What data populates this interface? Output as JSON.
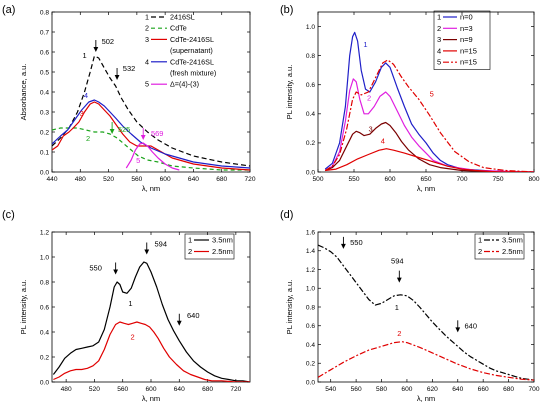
{
  "figure": {
    "panels": [
      {
        "letter": "(a)"
      },
      {
        "letter": "(b)"
      },
      {
        "letter": "(c)"
      },
      {
        "letter": "(d)"
      }
    ]
  },
  "chart_data": [
    {
      "panel": "(a)",
      "type": "line",
      "xlabel": "λ, nm",
      "ylabel": "Absorbance, a.u.",
      "xlim": [
        440,
        720
      ],
      "ylim": [
        0,
        0.8
      ],
      "xticks": [
        440,
        480,
        520,
        560,
        600,
        640,
        680,
        720
      ],
      "yticks": [
        0.0,
        0.1,
        0.2,
        0.3,
        0.4,
        0.5,
        0.6,
        0.7,
        0.8
      ],
      "grid": false,
      "legend_position": "top-right",
      "series": [
        {
          "id": "1",
          "name": "2416SL",
          "color": "#000000",
          "dash": "5,3",
          "curve_label": "1",
          "x": [
            440,
            452,
            464,
            476,
            486,
            494,
            500,
            506,
            514,
            522,
            530,
            538,
            548,
            560,
            575,
            590,
            610,
            640,
            680,
            720
          ],
          "y": [
            0.13,
            0.17,
            0.22,
            0.3,
            0.4,
            0.5,
            0.58,
            0.57,
            0.52,
            0.47,
            0.43,
            0.37,
            0.31,
            0.25,
            0.2,
            0.16,
            0.12,
            0.08,
            0.05,
            0.03
          ]
        },
        {
          "id": "2",
          "name": "CdTe",
          "color": "#1aa31a",
          "dash": "4,3",
          "curve_label": "2",
          "x": [
            440,
            452,
            464,
            476,
            488,
            500,
            512,
            522,
            532,
            542,
            552,
            562,
            575,
            590,
            610,
            640,
            680,
            720
          ],
          "y": [
            0.21,
            0.22,
            0.22,
            0.22,
            0.21,
            0.2,
            0.2,
            0.19,
            0.17,
            0.14,
            0.11,
            0.08,
            0.06,
            0.05,
            0.03,
            0.02,
            0.01,
            0.01
          ]
        },
        {
          "id": "3",
          "name": "CdTe-2416SL",
          "name2": "(supernatant)",
          "color": "#e00000",
          "dash": "",
          "curve_label": "3",
          "x": [
            440,
            448,
            456,
            464,
            470,
            478,
            486,
            494,
            500,
            506,
            514,
            522,
            530,
            540,
            550,
            560,
            570,
            580,
            595,
            610,
            640,
            680,
            720
          ],
          "y": [
            0.11,
            0.13,
            0.18,
            0.2,
            0.22,
            0.25,
            0.3,
            0.34,
            0.35,
            0.34,
            0.31,
            0.28,
            0.24,
            0.19,
            0.15,
            0.13,
            0.13,
            0.13,
            0.1,
            0.07,
            0.04,
            0.02,
            0.01
          ]
        },
        {
          "id": "4",
          "name": "CdTe-2416SL",
          "name2": "(fresh mixture)",
          "color": "#1f1fc8",
          "dash": "",
          "curve_label": "4",
          "x": [
            440,
            452,
            462,
            472,
            482,
            492,
            500,
            506,
            514,
            522,
            530,
            540,
            552,
            565,
            580,
            600,
            620,
            640,
            680,
            720
          ],
          "y": [
            0.14,
            0.18,
            0.21,
            0.26,
            0.31,
            0.35,
            0.36,
            0.35,
            0.33,
            0.3,
            0.27,
            0.23,
            0.19,
            0.15,
            0.12,
            0.09,
            0.07,
            0.05,
            0.03,
            0.02
          ]
        },
        {
          "id": "5",
          "name": "Δ=(4)-(3)",
          "color": "#e020e0",
          "dash": "",
          "curve_label": "5",
          "x": [
            545,
            552,
            558,
            564,
            569,
            575,
            582,
            590,
            600,
            610,
            620
          ],
          "y": [
            0.02,
            0.06,
            0.11,
            0.14,
            0.145,
            0.13,
            0.1,
            0.07,
            0.04,
            0.02,
            0.01
          ]
        }
      ],
      "annotations": [
        {
          "text": "502",
          "x": 502,
          "y": 0.6,
          "color": "#000000"
        },
        {
          "text": "532",
          "x": 532,
          "y": 0.46,
          "color": "#000000"
        },
        {
          "text": "525",
          "x": 525,
          "y": 0.19,
          "color": "#1aa31a"
        },
        {
          "text": "569",
          "x": 569,
          "y": 0.16,
          "color": "#e020e0"
        }
      ]
    },
    {
      "panel": "(b)",
      "type": "line",
      "xlabel": "λ, nm",
      "ylabel": "PL intensity, a.u.",
      "xlim": [
        500,
        800
      ],
      "ylim": [
        0,
        1.1
      ],
      "xticks": [
        500,
        550,
        600,
        650,
        700,
        750,
        800
      ],
      "yticks": [
        0.0,
        0.2,
        0.4,
        0.6,
        0.8,
        1.0
      ],
      "grid": false,
      "legend_position": "top-right",
      "series": [
        {
          "id": "1",
          "name": "n=0",
          "color": "#1f1fc8",
          "dash": "",
          "curve_label": "1",
          "x": [
            510,
            520,
            530,
            538,
            544,
            548,
            551,
            555,
            560,
            566,
            572,
            580,
            588,
            594,
            600,
            610,
            620,
            630,
            640,
            650,
            660,
            670,
            680,
            700,
            730,
            760,
            800
          ],
          "y": [
            0.02,
            0.06,
            0.2,
            0.45,
            0.8,
            0.93,
            0.96,
            0.9,
            0.7,
            0.57,
            0.55,
            0.62,
            0.72,
            0.75,
            0.72,
            0.58,
            0.45,
            0.33,
            0.26,
            0.2,
            0.13,
            0.08,
            0.05,
            0.02,
            0.01,
            0.0,
            0.0
          ]
        },
        {
          "id": "2",
          "name": "n=3",
          "color": "#e020e0",
          "dash": "",
          "curve_label": "2",
          "x": [
            510,
            520,
            530,
            538,
            544,
            549,
            553,
            558,
            564,
            570,
            578,
            586,
            594,
            600,
            610,
            620,
            630,
            640,
            650,
            660,
            680,
            720,
            800
          ],
          "y": [
            0.01,
            0.04,
            0.14,
            0.35,
            0.56,
            0.64,
            0.62,
            0.5,
            0.4,
            0.4,
            0.45,
            0.52,
            0.55,
            0.52,
            0.42,
            0.32,
            0.24,
            0.18,
            0.13,
            0.08,
            0.04,
            0.01,
            0.0
          ]
        },
        {
          "id": "3",
          "name": "n=9",
          "color": "#7a0000",
          "dash": "",
          "curve_label": "3",
          "x": [
            510,
            520,
            530,
            540,
            548,
            553,
            558,
            564,
            572,
            580,
            588,
            594,
            600,
            608,
            616,
            626,
            640,
            655,
            670,
            700,
            750,
            800
          ],
          "y": [
            0.01,
            0.03,
            0.08,
            0.18,
            0.26,
            0.28,
            0.27,
            0.25,
            0.26,
            0.3,
            0.33,
            0.34,
            0.32,
            0.27,
            0.21,
            0.15,
            0.09,
            0.05,
            0.03,
            0.01,
            0.0,
            0.0
          ]
        },
        {
          "id": "4",
          "name": "n=15",
          "color": "#e00000",
          "dash": "",
          "curve_label": "4",
          "x": [
            510,
            525,
            540,
            555,
            570,
            585,
            595,
            605,
            620,
            640,
            660,
            680,
            700,
            720,
            750,
            800
          ],
          "y": [
            0.01,
            0.02,
            0.05,
            0.09,
            0.12,
            0.15,
            0.16,
            0.15,
            0.13,
            0.1,
            0.07,
            0.04,
            0.02,
            0.01,
            0.0,
            0.0
          ]
        },
        {
          "id": "5",
          "name": "n=15",
          "color": "#e00000",
          "dash": "6,2,2,2",
          "curve_label": "5",
          "x": [
            510,
            520,
            530,
            540,
            548,
            553,
            560,
            570,
            580,
            590,
            597,
            605,
            615,
            625,
            640,
            655,
            670,
            690,
            710,
            730,
            760,
            800
          ],
          "y": [
            0.01,
            0.04,
            0.12,
            0.3,
            0.5,
            0.55,
            0.53,
            0.55,
            0.65,
            0.75,
            0.77,
            0.74,
            0.66,
            0.59,
            0.5,
            0.39,
            0.27,
            0.14,
            0.07,
            0.03,
            0.01,
            0.0
          ]
        }
      ]
    },
    {
      "panel": "(c)",
      "type": "line",
      "xlabel": "λ, nm",
      "ylabel": "PL intensity, a.u.",
      "xlim": [
        460,
        740
      ],
      "ylim": [
        0,
        1.2
      ],
      "xticks": [
        480,
        520,
        560,
        600,
        640,
        680,
        720
      ],
      "yticks": [
        0.0,
        0.2,
        0.4,
        0.6,
        0.8,
        1.0,
        1.2
      ],
      "grid": false,
      "legend_position": "top-right",
      "series": [
        {
          "id": "1",
          "name": "3.5nm",
          "color": "#000000",
          "dash": "",
          "curve_label": "1",
          "x": [
            462,
            470,
            478,
            486,
            494,
            502,
            510,
            518,
            526,
            534,
            542,
            548,
            552,
            556,
            560,
            566,
            572,
            578,
            584,
            590,
            594,
            600,
            608,
            616,
            624,
            632,
            640,
            650,
            660,
            670,
            680,
            690,
            700,
            710,
            720,
            730,
            740
          ],
          "y": [
            0.06,
            0.12,
            0.19,
            0.23,
            0.26,
            0.27,
            0.28,
            0.29,
            0.32,
            0.42,
            0.6,
            0.76,
            0.8,
            0.78,
            0.72,
            0.71,
            0.75,
            0.84,
            0.92,
            0.96,
            0.95,
            0.88,
            0.76,
            0.62,
            0.5,
            0.41,
            0.33,
            0.24,
            0.17,
            0.12,
            0.08,
            0.05,
            0.03,
            0.02,
            0.01,
            0.01,
            0.0
          ]
        },
        {
          "id": "2",
          "name": "2.5nm",
          "color": "#e00000",
          "dash": "",
          "curve_label": "2",
          "x": [
            462,
            470,
            478,
            486,
            494,
            502,
            510,
            518,
            526,
            534,
            542,
            550,
            556,
            562,
            568,
            574,
            580,
            586,
            592,
            598,
            604,
            610,
            618,
            626,
            636,
            646,
            656,
            666,
            676,
            686,
            700,
            720,
            740
          ],
          "y": [
            0.02,
            0.04,
            0.07,
            0.09,
            0.1,
            0.1,
            0.11,
            0.13,
            0.17,
            0.26,
            0.38,
            0.46,
            0.48,
            0.47,
            0.46,
            0.47,
            0.48,
            0.47,
            0.46,
            0.44,
            0.4,
            0.35,
            0.27,
            0.2,
            0.14,
            0.09,
            0.06,
            0.04,
            0.02,
            0.01,
            0.01,
            0.0,
            0.0
          ]
        }
      ],
      "annotations": [
        {
          "text": "550",
          "x": 550,
          "y": 0.86,
          "color": "#000000"
        },
        {
          "text": "594",
          "x": 594,
          "y": 1.02,
          "color": "#000000"
        },
        {
          "text": "640",
          "x": 640,
          "y": 0.45,
          "color": "#000000"
        }
      ]
    },
    {
      "panel": "(d)",
      "type": "line",
      "xlabel": "λ, nm",
      "ylabel": "PL intensity, a.u.",
      "xlim": [
        530,
        700
      ],
      "ylim": [
        0,
        1.6
      ],
      "xticks": [
        540,
        560,
        580,
        600,
        620,
        640,
        660,
        680,
        700
      ],
      "yticks": [
        0.0,
        0.2,
        0.4,
        0.6,
        0.8,
        1.0,
        1.2,
        1.4,
        1.6
      ],
      "grid": false,
      "legend_position": "top-right",
      "series": [
        {
          "id": "1",
          "name": "3.5nm",
          "color": "#000000",
          "dash": "6,2,2,2",
          "curve_label": "1",
          "x": [
            530,
            535,
            540,
            545,
            550,
            555,
            560,
            565,
            570,
            575,
            580,
            585,
            590,
            595,
            600,
            605,
            610,
            615,
            620,
            625,
            630,
            635,
            640,
            645,
            650,
            655,
            660,
            665,
            670,
            675,
            680,
            685,
            690,
            695,
            700
          ],
          "y": [
            1.46,
            1.43,
            1.39,
            1.33,
            1.24,
            1.15,
            1.06,
            0.97,
            0.88,
            0.82,
            0.84,
            0.88,
            0.92,
            0.93,
            0.92,
            0.87,
            0.8,
            0.72,
            0.64,
            0.57,
            0.5,
            0.44,
            0.38,
            0.32,
            0.27,
            0.23,
            0.19,
            0.15,
            0.12,
            0.1,
            0.08,
            0.06,
            0.04,
            0.03,
            0.02
          ]
        },
        {
          "id": "2",
          "name": "2.5nm",
          "color": "#e00000",
          "dash": "6,2,2,2",
          "curve_label": "2",
          "x": [
            530,
            540,
            550,
            560,
            570,
            580,
            590,
            596,
            600,
            610,
            620,
            630,
            640,
            650,
            660,
            670,
            680,
            690,
            700
          ],
          "y": [
            0.05,
            0.13,
            0.21,
            0.28,
            0.34,
            0.38,
            0.42,
            0.43,
            0.42,
            0.37,
            0.31,
            0.25,
            0.19,
            0.14,
            0.1,
            0.07,
            0.05,
            0.03,
            0.02
          ]
        }
      ],
      "annotations": [
        {
          "text": "550",
          "x": 550,
          "y": 1.42,
          "color": "#000000"
        },
        {
          "text": "594",
          "x": 594,
          "y": 1.06,
          "color": "#000000"
        },
        {
          "text": "640",
          "x": 640,
          "y": 0.53,
          "color": "#000000"
        }
      ]
    }
  ]
}
